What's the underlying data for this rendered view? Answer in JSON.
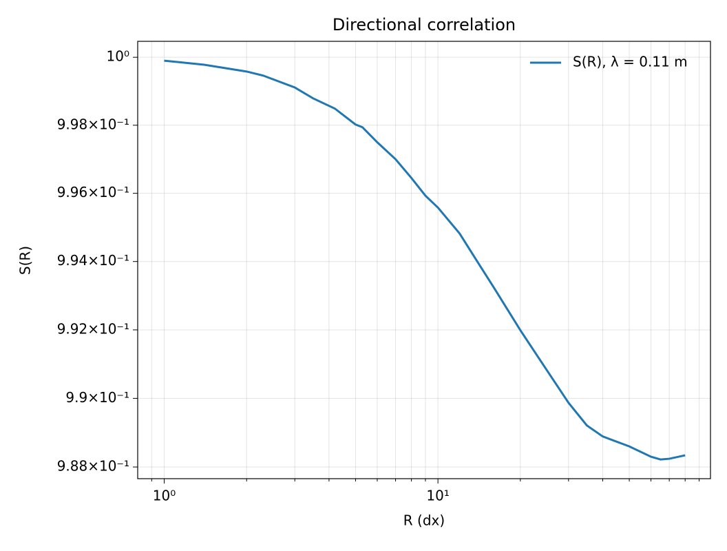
{
  "chart_data": {
    "type": "line",
    "title": "Directional correlation",
    "x_label": "R (dx)",
    "y_label": "S(R)",
    "x": [
      1,
      1.4,
      2,
      2.3,
      3,
      3.5,
      4.2,
      5,
      5.3,
      6,
      7,
      8,
      9,
      10,
      12,
      14,
      16,
      20,
      25,
      30,
      35,
      40,
      50,
      60,
      65,
      70,
      80
    ],
    "series": [
      {
        "name": "S(R), λ = 0.11 m",
        "color": "#1f77b4",
        "values": [
          0.9999,
          0.99978,
          0.99958,
          0.99946,
          0.99911,
          0.99879,
          0.99849,
          0.99802,
          0.99794,
          0.9975,
          0.997,
          0.99645,
          0.99593,
          0.99558,
          0.99482,
          0.99397,
          0.99324,
          0.99199,
          0.99082,
          0.98987,
          0.98921,
          0.98889,
          0.9886,
          0.9883,
          0.98822,
          0.98824,
          0.98834
        ]
      }
    ],
    "xscale": "log",
    "yscale": "log",
    "xlim": [
      0.8,
      99
    ],
    "ylim": [
      0.98766,
      1.00047
    ],
    "xticks": [
      {
        "value": 1,
        "label": "10⁰"
      },
      {
        "value": 10,
        "label": "10¹"
      }
    ],
    "xminorticks": [
      0.9,
      2,
      3,
      4,
      5,
      6,
      7,
      8,
      9,
      20,
      30,
      40,
      50,
      60,
      70,
      80,
      90
    ],
    "yticks": [
      {
        "value": 0.988,
        "label": "9.88×10⁻¹"
      },
      {
        "value": 0.99,
        "label": "9.9×10⁻¹"
      },
      {
        "value": 0.992,
        "label": "9.92×10⁻¹"
      },
      {
        "value": 0.994,
        "label": "9.94×10⁻¹"
      },
      {
        "value": 0.996,
        "label": "9.96×10⁻¹"
      },
      {
        "value": 0.998,
        "label": "9.98×10⁻¹"
      },
      {
        "value": 1,
        "label": "10⁰"
      }
    ],
    "grid": true,
    "legend": "upper right"
  }
}
